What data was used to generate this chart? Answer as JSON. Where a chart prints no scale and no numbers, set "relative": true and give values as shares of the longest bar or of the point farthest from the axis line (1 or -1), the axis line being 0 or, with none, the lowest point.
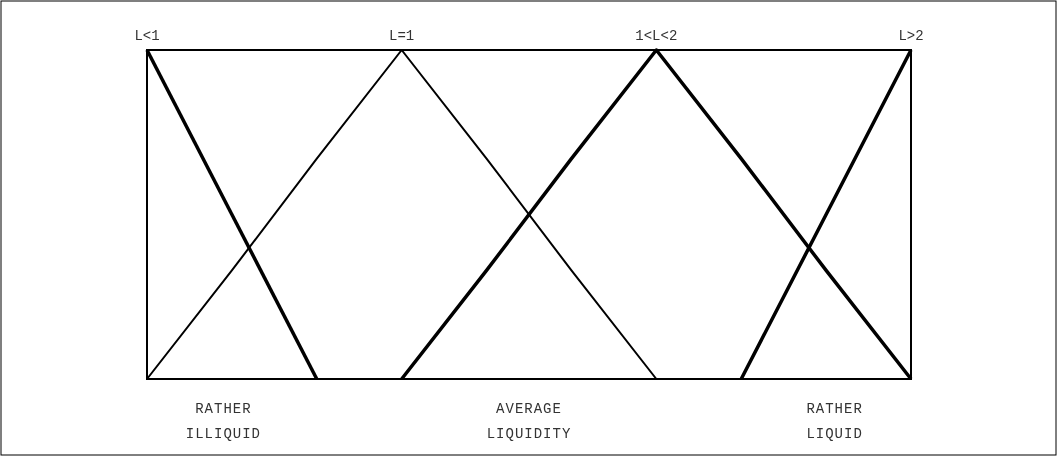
{
  "chart_data": {
    "type": "line",
    "relative": true,
    "categories": [
      "L<1",
      null,
      null,
      "L=1",
      null,
      null,
      "1<L<2",
      null,
      null,
      "L>2"
    ],
    "tick_labels": "x",
    "marker": "none",
    "line_style": "solid",
    "series": [
      {
        "color": "#000000",
        "values": [
          1,
          0.5,
          0,
          null,
          null,
          null,
          null,
          null,
          null,
          null
        ]
      },
      {
        "color": "#000000",
        "values": [
          0,
          0.33,
          0.67,
          1,
          0.67,
          0.33,
          0,
          null,
          null,
          null
        ]
      },
      {
        "color": "#000000",
        "values": [
          null,
          null,
          null,
          0,
          0.33,
          0.67,
          1,
          0.67,
          0.33,
          0
        ]
      },
      {
        "color": "#000000",
        "values": [
          null,
          null,
          null,
          null,
          null,
          null,
          null,
          0,
          0.5,
          1
        ]
      }
    ],
    "annotations": [
      "RATHER ILLIQUID",
      "AVERAGE LIQUIDITY",
      "RATHER LIQUID"
    ]
  }
}
